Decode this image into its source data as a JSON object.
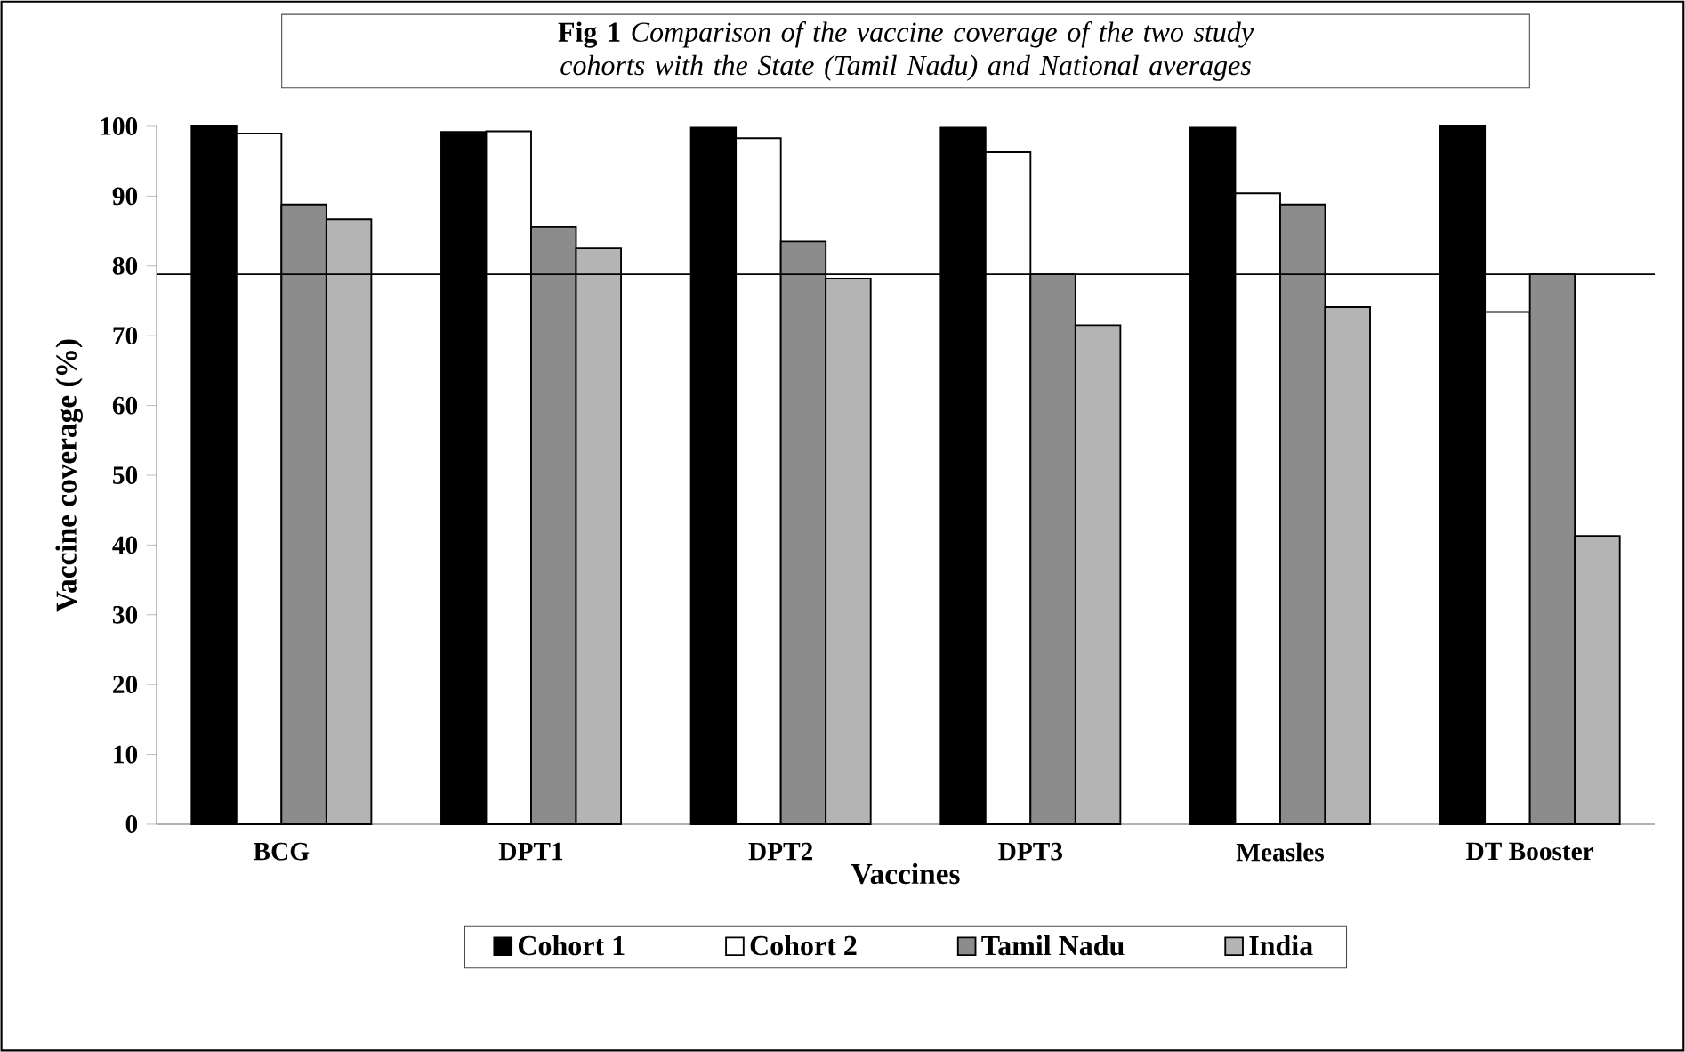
{
  "chart_data": {
    "type": "bar",
    "title": "**Fig 1** *Comparison of the vaccine coverage of the two study cohorts with the State (Tamil Nadu) and National averages*",
    "xlabel": "Vaccines",
    "ylabel": "Vaccine coverage (%)",
    "categories": [
      "BCG",
      "DPT1",
      "DPT2",
      "DPT3",
      "Measles",
      "DT Booster"
    ],
    "series": [
      {
        "name": "Cohort 1",
        "color": "#000000",
        "values": [
          100,
          99.2,
          99.8,
          99.8,
          99.8,
          100
        ]
      },
      {
        "name": "Cohort 2",
        "color": "#ffffff",
        "values": [
          99.0,
          99.3,
          98.3,
          96.3,
          90.4,
          73.4
        ]
      },
      {
        "name": "Tamil Nadu",
        "color": "#8c8c8c",
        "values": [
          88.8,
          85.6,
          83.5,
          78.8,
          88.8,
          78.8
        ]
      },
      {
        "name": "India",
        "color": "#b4b4b4",
        "values": [
          86.7,
          82.5,
          78.2,
          71.5,
          74.1,
          41.3
        ]
      }
    ],
    "ylim": [
      0,
      100
    ],
    "yticks": [
      0,
      10,
      20,
      30,
      40,
      50,
      60,
      70,
      80,
      90,
      100
    ],
    "ref_lines": [
      {
        "axis": "y",
        "value": 78.8,
        "color": "#000000"
      }
    ],
    "grid": false,
    "legend": "bottom"
  }
}
